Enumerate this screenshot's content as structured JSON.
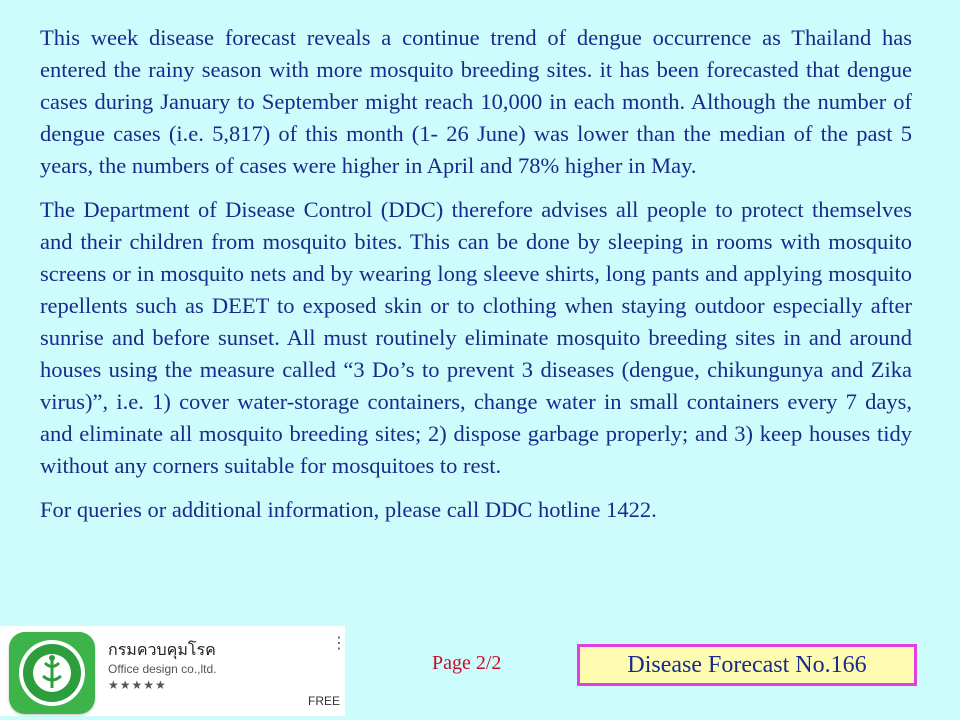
{
  "paragraphs": [
    "This week disease forecast reveals a continue trend of dengue occurrence as Thailand has entered the rainy season with more mosquito breeding sites. it has been  forecasted that dengue cases during January to September might reach 10,000 in each month. Although the number of dengue cases (i.e. 5,817) of this month (1- 26 June) was lower than the median of the past 5 years, the numbers of cases were higher in April and 78% higher in May.",
    "The Department of Disease Control (DDC) therefore advises all people to protect themselves and their children from mosquito bites. This can be done by sleeping in rooms with mosquito screens or in mosquito nets and by wearing long sleeve shirts, long pants and applying mosquito repellents such as DEET to exposed skin or to clothing when staying outdoor especially after sunrise and before sunset. All must routinely eliminate mosquito breeding sites in and around houses using the measure called “3 Do’s to prevent 3 diseases (dengue, chikungunya and Zika virus)”, i.e.  1) cover water-storage containers, change water in small containers every 7 days, and eliminate all mosquito breeding sites; 2) dispose garbage properly; and 3) keep houses tidy without any corners suitable for mosquitoes to rest.",
    "For queries or additional information, please call DDC hotline 1422."
  ],
  "app_card": {
    "name": "กรมควบคุมโรค",
    "developer": "Office design co.,ltd.",
    "stars": "★★★★★",
    "price": "FREE",
    "menu_icon": "more-vertical-icon",
    "logo_color": "#3cb44a"
  },
  "page_label": "Page 2/2",
  "forecast_label": "Disease Forecast No.166"
}
